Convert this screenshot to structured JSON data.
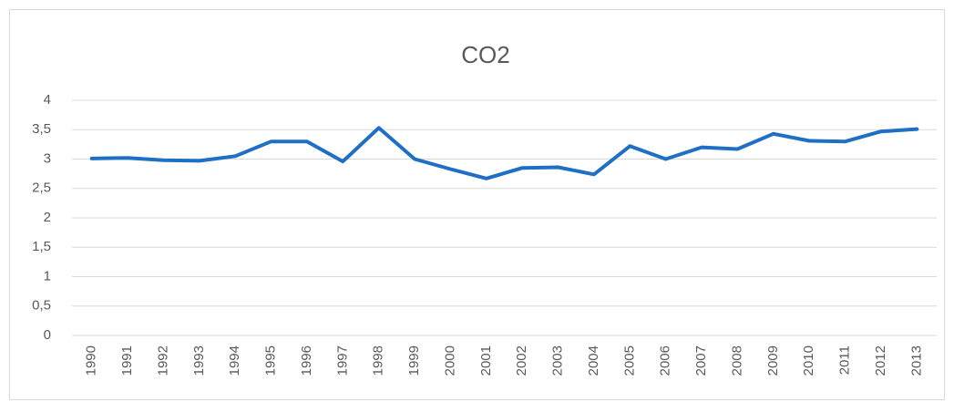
{
  "chart_data": {
    "type": "line",
    "title": "CO2",
    "categories": [
      "1990",
      "1991",
      "1992",
      "1993",
      "1994",
      "1995",
      "1996",
      "1997",
      "1998",
      "1999",
      "2000",
      "2001",
      "2002",
      "2003",
      "2004",
      "2005",
      "2006",
      "2007",
      "2008",
      "2009",
      "2010",
      "2011",
      "2012",
      "2013"
    ],
    "series": [
      {
        "name": "CO2",
        "color": "#1f6fc5",
        "values": [
          3.01,
          3.02,
          2.98,
          2.97,
          3.05,
          3.3,
          3.3,
          2.96,
          3.53,
          3.0,
          2.83,
          2.67,
          2.85,
          2.86,
          2.74,
          3.22,
          3.0,
          3.2,
          3.17,
          3.43,
          3.31,
          3.3,
          3.47,
          3.51
        ]
      }
    ],
    "ylim": [
      0,
      4
    ],
    "yticks": [
      0,
      {
        "value": 0.5,
        "label": "0,5"
      },
      1,
      {
        "value": 1.5,
        "label": "1,5"
      },
      2,
      {
        "value": 2.5,
        "label": "2,5"
      },
      3,
      {
        "value": 3.5,
        "label": "3,5"
      },
      4
    ],
    "grid": true
  }
}
